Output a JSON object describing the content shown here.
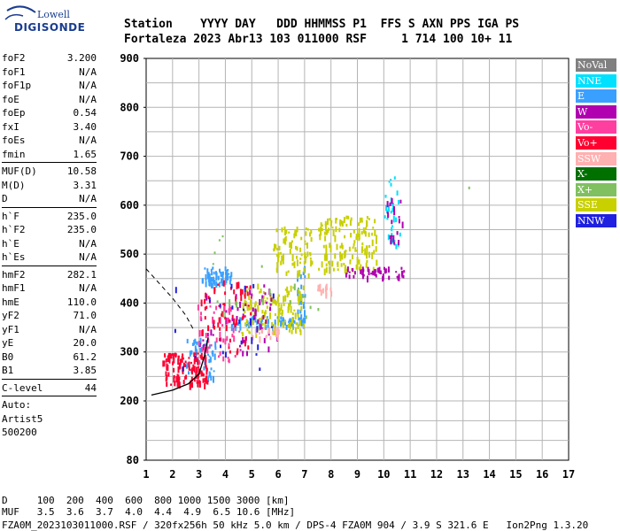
{
  "logo": {
    "top": "Lowell",
    "main": "DIGISONDE"
  },
  "header": {
    "line1": "Station    YYYY DAY   DDD HHMMSS P1  FFS S AXN PPS IGA PS",
    "line2": "Fortaleza 2023 Abr13 103 011000 RSF     1 714 100 10+ 11"
  },
  "params": {
    "groups": [
      [
        {
          "k": "foF2",
          "v": "3.200"
        },
        {
          "k": "foF1",
          "v": "N/A"
        },
        {
          "k": "foF1p",
          "v": "N/A"
        },
        {
          "k": "foE",
          "v": "N/A"
        },
        {
          "k": "foEp",
          "v": "0.54"
        },
        {
          "k": "fxI",
          "v": "3.40"
        },
        {
          "k": "foEs",
          "v": "N/A"
        },
        {
          "k": "fmin",
          "v": "1.65"
        }
      ],
      [
        {
          "k": "MUF(D)",
          "v": "10.58"
        },
        {
          "k": "M(D)",
          "v": "3.31"
        },
        {
          "k": "D",
          "v": "N/A"
        }
      ],
      [
        {
          "k": "h`F",
          "v": "235.0"
        },
        {
          "k": "h`F2",
          "v": "235.0"
        },
        {
          "k": "h`E",
          "v": "N/A"
        },
        {
          "k": "h`Es",
          "v": "N/A"
        }
      ],
      [
        {
          "k": "hmF2",
          "v": "282.1"
        },
        {
          "k": "hmF1",
          "v": "N/A"
        },
        {
          "k": "hmE",
          "v": "110.0"
        },
        {
          "k": "yF2",
          "v": "71.0"
        },
        {
          "k": "yF1",
          "v": "N/A"
        },
        {
          "k": "yE",
          "v": "20.0"
        },
        {
          "k": "B0",
          "v": "61.2"
        },
        {
          "k": "B1",
          "v": "3.85"
        }
      ],
      [
        {
          "k": "C-level",
          "v": "44"
        }
      ]
    ],
    "auto": [
      "Auto:",
      "Artist5",
      "500200"
    ]
  },
  "legend": [
    {
      "label": "NoVal",
      "color": "#808080"
    },
    {
      "label": "NNE",
      "color": "#00e0ff"
    },
    {
      "label": "E",
      "color": "#3aa0ff"
    },
    {
      "label": "W",
      "color": "#b000b0"
    },
    {
      "label": "Vo-",
      "color": "#ff3fa0"
    },
    {
      "label": "Vo+",
      "color": "#ff0030"
    },
    {
      "label": "SSW",
      "color": "#ffb0b0"
    },
    {
      "label": "X-",
      "color": "#007000"
    },
    {
      "label": "X+",
      "color": "#80c060"
    },
    {
      "label": "SSE",
      "color": "#c8d000"
    },
    {
      "label": "NNW",
      "color": "#2020e0"
    }
  ],
  "chart_data": {
    "type": "scatter",
    "xlabels": [
      "1",
      "2",
      "3",
      "4",
      "5",
      "6",
      "7",
      "8",
      "9",
      "10",
      "11",
      "12",
      "13",
      "14",
      "15",
      "16",
      "17"
    ],
    "ylabels": [
      "80",
      "200",
      "300",
      "400",
      "500",
      "600",
      "700",
      "800",
      "900"
    ],
    "xlim": [
      1,
      17
    ],
    "ylim": [
      80,
      900
    ],
    "grid": true,
    "clusters": [
      {
        "color": "#3aa0ff",
        "x": [
          3.1,
          4.2
        ],
        "y": [
          440,
          475
        ],
        "n": 60
      },
      {
        "color": "#3aa0ff",
        "x": [
          4.2,
          7.0
        ],
        "y": [
          355,
          375
        ],
        "n": 70
      },
      {
        "color": "#3aa0ff",
        "x": [
          6.7,
          7.0
        ],
        "y": [
          360,
          480
        ],
        "n": 25
      },
      {
        "color": "#3aa0ff",
        "x": [
          2.5,
          3.6
        ],
        "y": [
          250,
          330
        ],
        "n": 50
      },
      {
        "color": "#c8d000",
        "x": [
          4.6,
          7.0
        ],
        "y": [
          340,
          440
        ],
        "n": 120
      },
      {
        "color": "#c8d000",
        "x": [
          5.8,
          7.3
        ],
        "y": [
          460,
          560
        ],
        "n": 80
      },
      {
        "color": "#c8d000",
        "x": [
          7.5,
          9.7
        ],
        "y": [
          470,
          580
        ],
        "n": 150
      },
      {
        "color": "#b000b0",
        "x": [
          8.5,
          10.8
        ],
        "y": [
          455,
          475
        ],
        "n": 50
      },
      {
        "color": "#b000b0",
        "x": [
          3.0,
          6.0
        ],
        "y": [
          300,
          440
        ],
        "n": 60
      },
      {
        "color": "#ff3fa0",
        "x": [
          2.9,
          4.5
        ],
        "y": [
          280,
          400
        ],
        "n": 50
      },
      {
        "color": "#ff0030",
        "x": [
          1.6,
          3.3
        ],
        "y": [
          235,
          300
        ],
        "n": 120
      },
      {
        "color": "#ff0030",
        "x": [
          3.0,
          5.0
        ],
        "y": [
          300,
          450
        ],
        "n": 60
      },
      {
        "color": "#ffb0b0",
        "x": [
          5.0,
          6.0
        ],
        "y": [
          330,
          350
        ],
        "n": 25
      },
      {
        "color": "#ffb0b0",
        "x": [
          7.4,
          8.0
        ],
        "y": [
          420,
          440
        ],
        "n": 15
      },
      {
        "color": "#00e0ff",
        "x": [
          10.0,
          10.6
        ],
        "y": [
          520,
          660
        ],
        "n": 30
      },
      {
        "color": "#b000b0",
        "x": [
          10.0,
          10.7
        ],
        "y": [
          520,
          620
        ],
        "n": 20
      },
      {
        "color": "#2020e0",
        "x": [
          2.0,
          6.0
        ],
        "y": [
          250,
          450
        ],
        "n": 25
      },
      {
        "color": "#80c060",
        "x": [
          3.5,
          7.5
        ],
        "y": [
          350,
          550
        ],
        "n": 20
      }
    ],
    "isolated": [
      {
        "color": "#80c060",
        "x": 13.2,
        "y": 638
      }
    ]
  },
  "bottom": {
    "line1": "D     100  200  400  600  800 1000 1500 3000 [km]",
    "line2": "MUF   3.5  3.6  3.7  4.0  4.4  4.9  6.5 10.6 [MHz]",
    "line3": "FZA0M_2023103011000.RSF / 320fx256h 50 kHz 5.0 km / DPS-4 FZA0M 904 / 3.9 S 321.6 E   Ion2Png 1.3.20"
  }
}
